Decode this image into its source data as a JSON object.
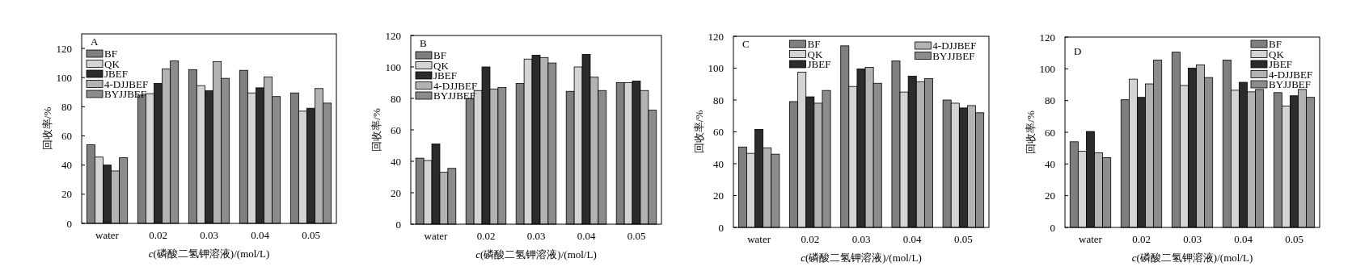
{
  "chart_data": [
    {
      "type": "bar",
      "annotations": [
        "A"
      ],
      "legend": "top left",
      "xlabel": "*c*(磷酸二氢钾溶液)/(mol/L)",
      "ylabel": "回收率/%",
      "categories": [
        "water",
        "0.02",
        "0.03",
        "0.04",
        "0.05"
      ],
      "ylim": [
        0,
        130
      ],
      "yticks": [
        0,
        20,
        40,
        60,
        80,
        100,
        120
      ],
      "series": [
        {
          "name": "BF",
          "color": "#7f7f7f",
          "values": [
            54,
            88,
            105.5,
            105,
            89.5
          ]
        },
        {
          "name": "QK",
          "color": "#d4d4d4",
          "values": [
            45.5,
            89,
            94.5,
            89.5,
            77
          ]
        },
        {
          "name": "JBEF",
          "color": "#2b2b2b",
          "values": [
            40,
            96,
            91,
            93,
            79
          ]
        },
        {
          "name": "4-DJJBEF",
          "color": "#b3b3b3",
          "values": [
            36,
            106,
            111,
            100.5,
            92.5
          ]
        },
        {
          "name": "BYJJBEF",
          "color": "#8c8c8c",
          "values": [
            45,
            111.5,
            99.5,
            87,
            82.5
          ]
        }
      ]
    },
    {
      "type": "bar",
      "annotations": [
        "B"
      ],
      "legend": "top left",
      "xlabel": "*c*(磷酸二氢钾溶液)/(mol/L)",
      "ylabel": "回收率/%",
      "categories": [
        "water",
        "0.02",
        "0.03",
        "0.04",
        "0.05"
      ],
      "ylim": [
        0,
        120
      ],
      "yticks": [
        0,
        20,
        40,
        60,
        80,
        100,
        120
      ],
      "series": [
        {
          "name": "BF",
          "color": "#7f7f7f",
          "values": [
            42,
            80,
            89.5,
            84.5,
            90
          ]
        },
        {
          "name": "QK",
          "color": "#d4d4d4",
          "values": [
            40.5,
            85,
            105,
            100,
            90
          ]
        },
        {
          "name": "JBEF",
          "color": "#2b2b2b",
          "values": [
            51,
            100,
            107.5,
            108,
            91
          ]
        },
        {
          "name": "4-DJJBEF",
          "color": "#b3b3b3",
          "values": [
            33,
            86,
            106,
            93.5,
            85
          ]
        },
        {
          "name": "BYJJBEF",
          "color": "#8c8c8c",
          "values": [
            35.5,
            87,
            102.5,
            85,
            72.5
          ]
        }
      ]
    },
    {
      "type": "bar",
      "annotations": [
        "C"
      ],
      "legend": "top",
      "xlabel": "*c*(磷酸二氢钾溶液)/(mol/L)",
      "ylabel": "回收率/%",
      "categories": [
        "water",
        "0.02",
        "0.03",
        "0.04",
        "0.05"
      ],
      "ylim": [
        0,
        120
      ],
      "yticks": [
        0,
        20,
        40,
        60,
        80,
        100,
        120
      ],
      "series": [
        {
          "name": "BF",
          "color": "#7f7f7f",
          "values": [
            50.5,
            79,
            114,
            104.5,
            80
          ]
        },
        {
          "name": "QK",
          "color": "#d4d4d4",
          "values": [
            46.5,
            97.5,
            88.5,
            85,
            78
          ]
        },
        {
          "name": "JBEF",
          "color": "#2b2b2b",
          "values": [
            61.5,
            82,
            99.5,
            95,
            75
          ]
        },
        {
          "name": "4-DJJBEF",
          "color": "#b3b3b3",
          "values": [
            50,
            78,
            100.5,
            91.5,
            76.5
          ]
        },
        {
          "name": "BYJJBEF",
          "color": "#8c8c8c",
          "values": [
            46,
            86,
            90.5,
            93.5,
            72
          ]
        }
      ]
    },
    {
      "type": "bar",
      "annotations": [
        "D"
      ],
      "legend": "top right",
      "xlabel": "*c*(磷酸二氢钾溶液)/(mol/L)",
      "ylabel": "回收率/%",
      "categories": [
        "water",
        "0.02",
        "0.03",
        "0.04",
        "0.05"
      ],
      "ylim": [
        0,
        120
      ],
      "yticks": [
        0,
        20,
        40,
        60,
        80,
        100,
        120
      ],
      "series": [
        {
          "name": "BF",
          "color": "#7f7f7f",
          "values": [
            54,
            80.5,
            110.5,
            105.5,
            85
          ]
        },
        {
          "name": "QK",
          "color": "#d4d4d4",
          "values": [
            48,
            93.5,
            89.5,
            86.5,
            76.5
          ]
        },
        {
          "name": "JBEF",
          "color": "#2b2b2b",
          "values": [
            60.5,
            82,
            100.5,
            91.5,
            83
          ]
        },
        {
          "name": "4-DJJBEF",
          "color": "#b3b3b3",
          "values": [
            47,
            90.5,
            102.5,
            85.5,
            87
          ]
        },
        {
          "name": "BYJJBEF",
          "color": "#8c8c8c",
          "values": [
            44,
            105.5,
            94.5,
            87,
            82
          ]
        }
      ]
    }
  ]
}
